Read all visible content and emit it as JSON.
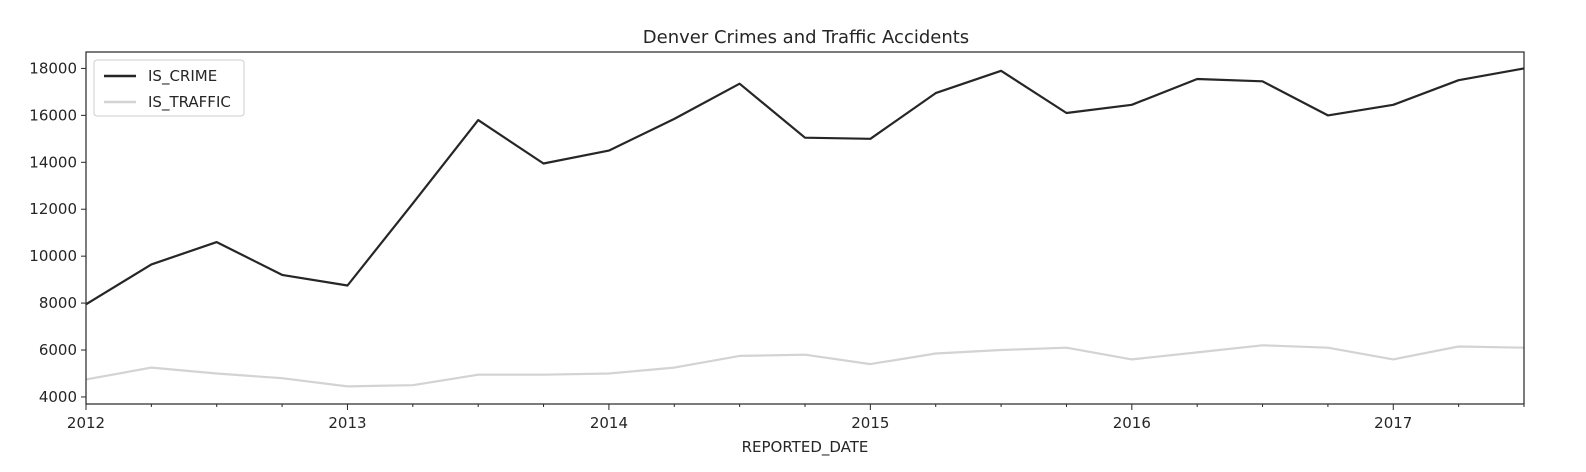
{
  "chart_data": {
    "type": "line",
    "title": "Denver Crimes and Traffic Accidents",
    "xlabel": "REPORTED_DATE",
    "ylabel": "",
    "x": [
      "2012-01",
      "2012-04",
      "2012-07",
      "2012-10",
      "2013-01",
      "2013-04",
      "2013-07",
      "2013-10",
      "2014-01",
      "2014-04",
      "2014-07",
      "2014-10",
      "2015-01",
      "2015-04",
      "2015-07",
      "2015-10",
      "2016-01",
      "2016-04",
      "2016-07",
      "2016-10",
      "2017-01",
      "2017-04",
      "2017-07"
    ],
    "x_tick_labels": [
      "2012",
      "2013",
      "2014",
      "2015",
      "2016",
      "2017"
    ],
    "y_ticks": [
      4000,
      6000,
      8000,
      10000,
      12000,
      14000,
      16000,
      18000
    ],
    "ylim": [
      3700,
      18700
    ],
    "grid": false,
    "legend_position": "upper-left",
    "series": [
      {
        "name": "IS_CRIME",
        "color": "#262626",
        "values": [
          7950,
          9650,
          10600,
          9200,
          8750,
          12250,
          15800,
          13950,
          14500,
          15850,
          17350,
          15050,
          15000,
          16950,
          17900,
          16100,
          16450,
          17550,
          17450,
          16000,
          16450,
          17500,
          18000
        ]
      },
      {
        "name": "IS_TRAFFIC",
        "color": "#d3d3d3",
        "values": [
          4750,
          5250,
          5000,
          4800,
          4450,
          4500,
          4950,
          4950,
          5000,
          5250,
          5750,
          5800,
          5400,
          5850,
          6000,
          6100,
          5600,
          5900,
          6200,
          6100,
          5600,
          6150,
          6100
        ]
      }
    ]
  }
}
